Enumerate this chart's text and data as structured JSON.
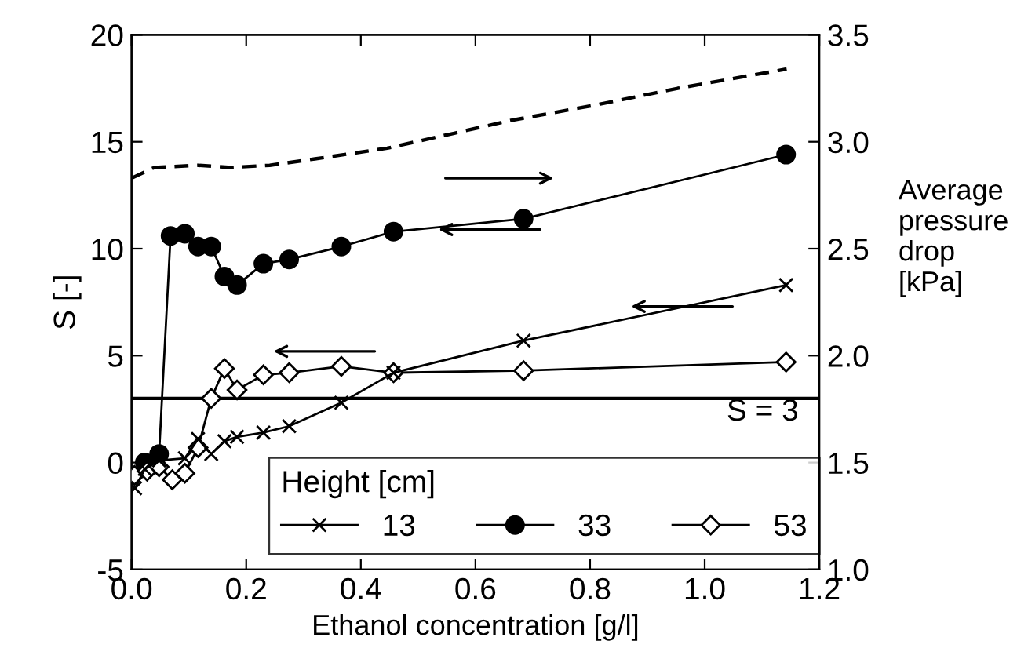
{
  "chart_data": {
    "type": "line",
    "xlabel": "Ethanol concentration [g/l]",
    "ylabel": "S [-]",
    "y2label": "Average\npressure\ndrop\n[kPa]",
    "legend_title": "Height [cm]",
    "legend": "bottom",
    "xlim": [
      0.0,
      1.2
    ],
    "xticks": [
      {
        "value": 0.0,
        "label": "0.0"
      },
      {
        "value": 0.2,
        "label": "0.2"
      },
      {
        "value": 0.4,
        "label": "0.4"
      },
      {
        "value": 0.6,
        "label": "0.6"
      },
      {
        "value": 0.8,
        "label": "0.8"
      },
      {
        "value": 1.0,
        "label": "1.0"
      },
      {
        "value": 1.2,
        "label": "1.2"
      }
    ],
    "ylim": [
      -5,
      20
    ],
    "yticks": [
      -5,
      0,
      5,
      10,
      15,
      20
    ],
    "y2lim": [
      1.0,
      3.5
    ],
    "y2ticks": [
      {
        "value": 1.0,
        "label": "1.0"
      },
      {
        "value": 1.5,
        "label": "1.5"
      },
      {
        "value": 2.0,
        "label": "2.0"
      },
      {
        "value": 2.5,
        "label": "2.5"
      },
      {
        "value": 3.0,
        "label": "3.0"
      },
      {
        "value": 3.5,
        "label": "3.5"
      }
    ],
    "ref_lines": [
      {
        "axis": "y",
        "value": 3,
        "label": "S = 3",
        "color": "#000000",
        "line_style": "solid"
      }
    ],
    "series": [
      {
        "name": "13",
        "color": "#000000",
        "marker": "cross",
        "x": [
          0.006,
          0.023,
          0.048,
          0.093,
          0.116,
          0.139,
          0.162,
          0.184,
          0.23,
          0.275,
          0.366,
          0.457,
          0.684,
          1.142
        ],
        "values": [
          -1.2,
          -0.3,
          0.1,
          0.2,
          1.1,
          0.4,
          1.0,
          1.2,
          1.4,
          1.7,
          2.8,
          4.2,
          5.7,
          8.3
        ]
      },
      {
        "name": "33",
        "color": "#000000",
        "marker": "circle",
        "x": [
          0.023,
          0.048,
          0.068,
          0.093,
          0.116,
          0.139,
          0.162,
          0.184,
          0.23,
          0.275,
          0.366,
          0.457,
          0.684,
          1.142
        ],
        "values": [
          0.0,
          0.4,
          10.6,
          10.7,
          10.1,
          10.1,
          8.7,
          8.3,
          9.3,
          9.5,
          10.1,
          10.8,
          11.4,
          14.4
        ]
      },
      {
        "name": "53",
        "color": "#000000",
        "marker": "diamond",
        "x": [
          0.005,
          0.027,
          0.048,
          0.071,
          0.093,
          0.116,
          0.139,
          0.162,
          0.184,
          0.23,
          0.275,
          0.366,
          0.457,
          0.684,
          1.142
        ],
        "values": [
          -0.6,
          -0.4,
          -0.2,
          -0.8,
          -0.5,
          0.7,
          3.0,
          4.4,
          3.4,
          4.1,
          4.2,
          4.5,
          4.2,
          4.3,
          4.7
        ]
      },
      {
        "color": "#000000",
        "marker": "none",
        "line_style": "dashed",
        "axis": "y2",
        "x": [
          0.0,
          0.04,
          0.116,
          0.173,
          0.241,
          0.32,
          0.446,
          0.563,
          0.662,
          0.806,
          0.953,
          1.143
        ],
        "values": [
          2.83,
          2.88,
          2.89,
          2.88,
          2.89,
          2.92,
          2.97,
          3.04,
          3.1,
          3.17,
          3.25,
          3.34
        ]
      }
    ]
  }
}
